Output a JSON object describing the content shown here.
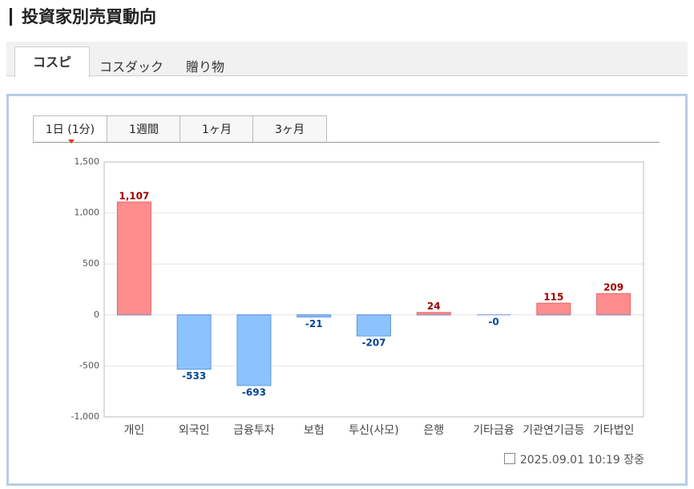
{
  "header": {
    "title": "投資家別売買動向"
  },
  "market_tabs": [
    "コスピ",
    "コスダック",
    "贈り物"
  ],
  "period_tabs": [
    "1日 (1分)",
    "1週間",
    "1ヶ月",
    "3ヶ月"
  ],
  "chart_data": {
    "type": "bar",
    "categories": [
      "개인",
      "외국인",
      "금융투자",
      "보험",
      "투신(사모)",
      "은행",
      "기타금융",
      "기관연기금등",
      "기타법인"
    ],
    "values": [
      1107,
      -533,
      -693,
      -21,
      -207,
      24,
      0,
      115,
      209
    ],
    "value_labels": [
      "1,107",
      "-533",
      "-693",
      "-21",
      "-207",
      "24",
      "-0",
      "115",
      "209"
    ],
    "color_positive": "#ff8c8c",
    "color_negative": "#8cc3ff",
    "ylim": [
      -1000,
      1500
    ],
    "yticks": [
      {
        "value": -1000,
        "label": "-1,000"
      },
      -500,
      0,
      500,
      {
        "value": 1000,
        "label": "1,000"
      },
      {
        "value": 1500,
        "label": "1,500"
      }
    ],
    "grid": true
  },
  "footer": {
    "timestamp": "2025.09.01 10:19 장중"
  }
}
